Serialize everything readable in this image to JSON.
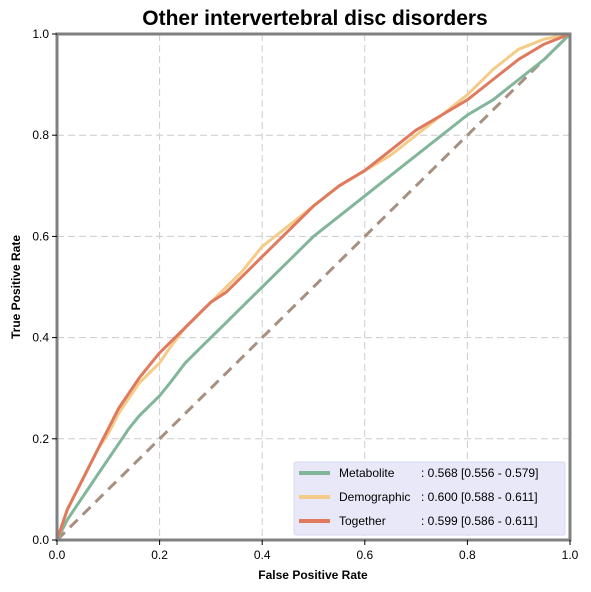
{
  "chart_data": {
    "type": "line",
    "title": "Other intervertebral disc disorders",
    "xlabel": "False Positive Rate",
    "ylabel": "True Positive Rate",
    "xlim": [
      0.0,
      1.0
    ],
    "ylim": [
      0.0,
      1.0
    ],
    "x_ticks": [
      "0.0",
      "0.2",
      "0.4",
      "0.6",
      "0.8",
      "1.0"
    ],
    "y_ticks": [
      "0.0",
      "0.2",
      "0.4",
      "0.6",
      "0.8",
      "1.0"
    ],
    "grid": true,
    "legend_position": "bottom-right",
    "series": [
      {
        "name": "Metabolite",
        "auc_label": ": 0.568 [0.556 - 0.579]",
        "color": "#82b69a",
        "x": [
          0,
          0.01,
          0.02,
          0.04,
          0.06,
          0.08,
          0.1,
          0.12,
          0.14,
          0.16,
          0.18,
          0.2,
          0.22,
          0.25,
          0.28,
          0.3,
          0.33,
          0.36,
          0.4,
          0.45,
          0.5,
          0.55,
          0.6,
          0.65,
          0.7,
          0.75,
          0.8,
          0.85,
          0.9,
          0.95,
          1.0
        ],
        "y": [
          0,
          0.02,
          0.04,
          0.07,
          0.1,
          0.13,
          0.16,
          0.19,
          0.22,
          0.245,
          0.265,
          0.285,
          0.31,
          0.35,
          0.38,
          0.4,
          0.43,
          0.46,
          0.5,
          0.55,
          0.6,
          0.64,
          0.68,
          0.72,
          0.76,
          0.8,
          0.84,
          0.87,
          0.91,
          0.95,
          1.0
        ]
      },
      {
        "name": "Demographic",
        "auc_label": ": 0.600 [0.588 - 0.611]",
        "color": "#f5cb88",
        "x": [
          0,
          0.01,
          0.02,
          0.04,
          0.06,
          0.08,
          0.1,
          0.12,
          0.14,
          0.16,
          0.18,
          0.2,
          0.22,
          0.25,
          0.28,
          0.3,
          0.33,
          0.36,
          0.4,
          0.45,
          0.5,
          0.55,
          0.6,
          0.65,
          0.7,
          0.75,
          0.8,
          0.85,
          0.9,
          0.95,
          1.0
        ],
        "y": [
          0,
          0.03,
          0.06,
          0.1,
          0.14,
          0.18,
          0.21,
          0.25,
          0.28,
          0.31,
          0.33,
          0.35,
          0.38,
          0.42,
          0.45,
          0.47,
          0.5,
          0.53,
          0.58,
          0.62,
          0.66,
          0.7,
          0.73,
          0.76,
          0.8,
          0.84,
          0.88,
          0.93,
          0.97,
          0.99,
          1.0
        ]
      },
      {
        "name": "Together",
        "auc_label": ": 0.599 [0.586 - 0.611]",
        "color": "#e07a5f",
        "x": [
          0,
          0.01,
          0.02,
          0.04,
          0.06,
          0.08,
          0.1,
          0.12,
          0.14,
          0.16,
          0.18,
          0.2,
          0.22,
          0.25,
          0.28,
          0.3,
          0.33,
          0.36,
          0.4,
          0.45,
          0.5,
          0.55,
          0.6,
          0.65,
          0.7,
          0.75,
          0.8,
          0.85,
          0.9,
          0.95,
          1.0
        ],
        "y": [
          0,
          0.03,
          0.06,
          0.1,
          0.14,
          0.18,
          0.22,
          0.26,
          0.29,
          0.32,
          0.345,
          0.37,
          0.39,
          0.42,
          0.45,
          0.47,
          0.49,
          0.52,
          0.56,
          0.61,
          0.66,
          0.7,
          0.73,
          0.77,
          0.81,
          0.84,
          0.87,
          0.91,
          0.95,
          0.98,
          1.0
        ]
      }
    ],
    "reference_line": {
      "x": [
        0,
        1
      ],
      "y": [
        0,
        1
      ],
      "color": "#a89080",
      "style": "dashed"
    }
  }
}
